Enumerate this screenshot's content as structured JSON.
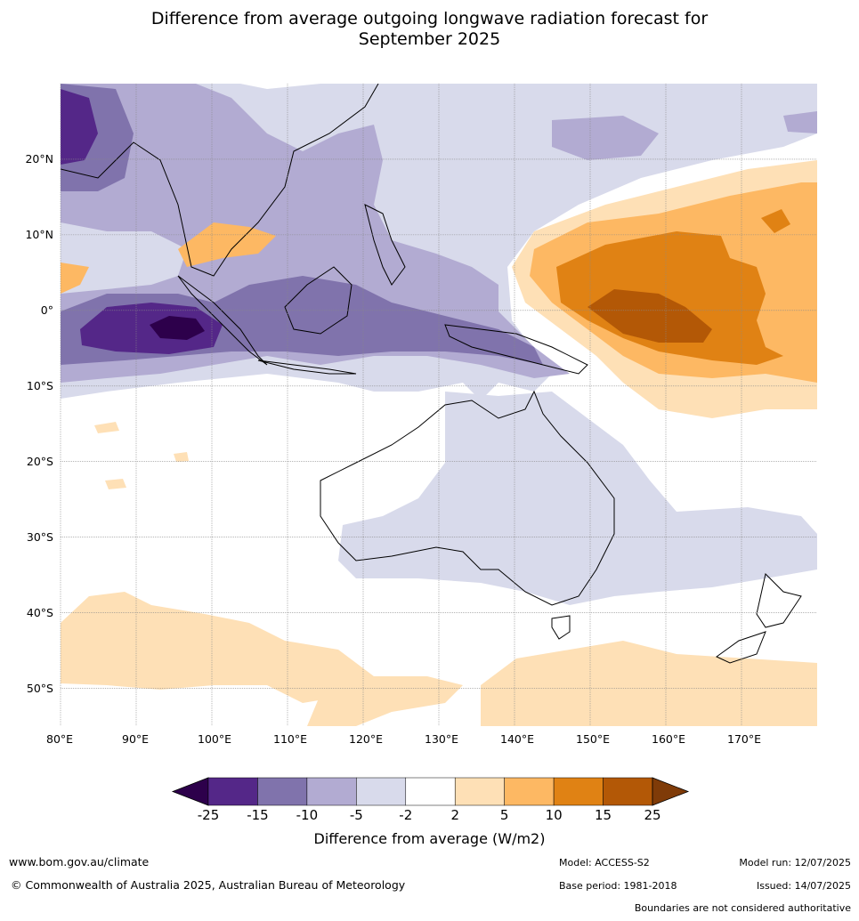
{
  "title": {
    "line1": "Difference from average outgoing longwave radiation forecast for",
    "line2": "September 2025"
  },
  "map": {
    "lon_ticks": [
      "80°E",
      "90°E",
      "100°E",
      "110°E",
      "120°E",
      "130°E",
      "140°E",
      "150°E",
      "160°E",
      "170°E"
    ],
    "lat_ticks": [
      "20°N",
      "10°N",
      "0°",
      "10°S",
      "20°S",
      "30°S",
      "40°S",
      "50°S"
    ],
    "lon_range": [
      80,
      180
    ],
    "lat_range": [
      -55,
      30
    ],
    "grid": true
  },
  "colorbar": {
    "labels": [
      "-25",
      "-15",
      "-10",
      "-5",
      "-2",
      "2",
      "5",
      "10",
      "15",
      "25"
    ],
    "colors": [
      "#2d004b",
      "#542788",
      "#8073ac",
      "#b2abd2",
      "#d8daeb",
      "#ffffff",
      "#fee0b6",
      "#fdb863",
      "#e08214",
      "#b35806",
      "#7f3b08"
    ],
    "title": "Difference from average (W/m2)",
    "extend": "both"
  },
  "footer": {
    "website": "www.bom.gov.au/climate",
    "copyright": "© Commonwealth of Australia 2025, Australian Bureau of Meteorology",
    "model": "Model: ACCESS-S2",
    "base_period": "Base period: 1981-2018",
    "model_run": "Model run: 12/07/2025",
    "issued": "Issued: 14/07/2025",
    "disclaimer": "Boundaries are not considered authoritative"
  }
}
